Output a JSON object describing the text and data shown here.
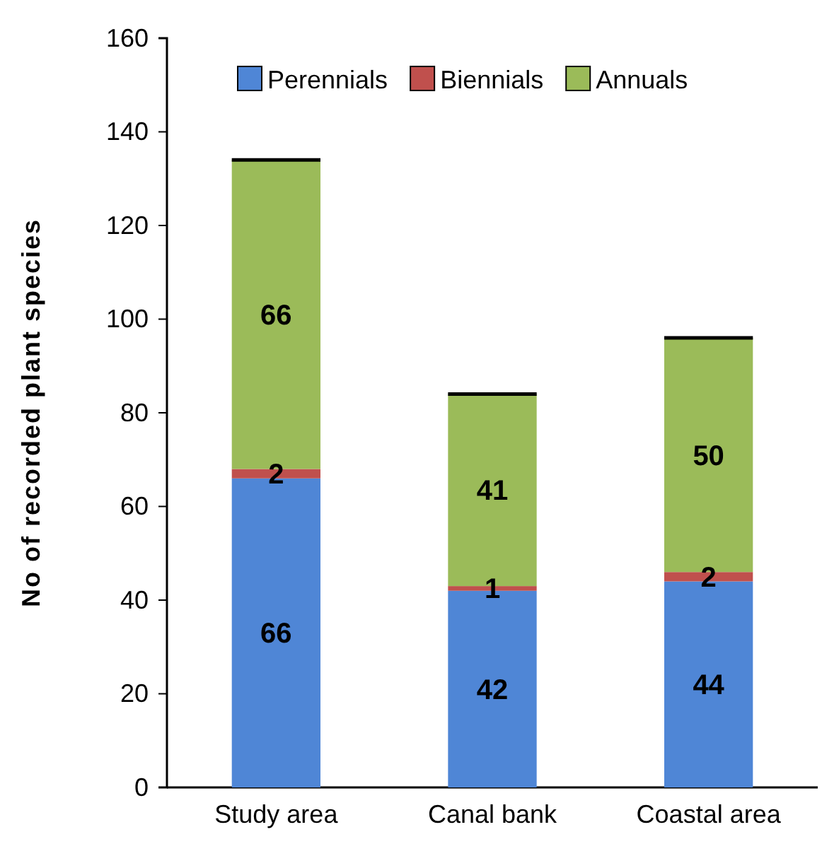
{
  "chart_data": {
    "type": "bar",
    "stacked": true,
    "ylabel": "No of recorded plant species",
    "categories": [
      "Study area",
      "Canal bank",
      "Coastal area"
    ],
    "series": [
      {
        "name": "Perennials",
        "color": "#4f86d6",
        "values": [
          66,
          42,
          44
        ]
      },
      {
        "name": "Biennials",
        "color": "#c0504d",
        "values": [
          2,
          1,
          2
        ]
      },
      {
        "name": "Annuals",
        "color": "#9bbb59",
        "values": [
          66,
          41,
          50
        ]
      }
    ],
    "ylim": [
      0,
      160
    ],
    "yticks": [
      0,
      20,
      40,
      60,
      80,
      100,
      120,
      140,
      160
    ],
    "data_labels": true,
    "legend": "top",
    "grid": false
  }
}
